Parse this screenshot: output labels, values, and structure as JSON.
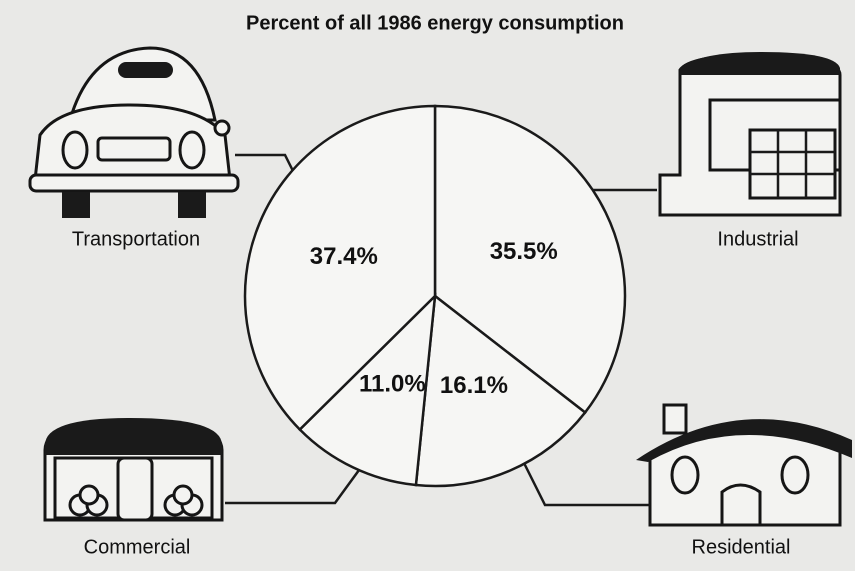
{
  "chart_data": {
    "type": "pie",
    "title": "Percent of all 1986 energy consumption",
    "categories": [
      "Industrial",
      "Residential",
      "Commercial",
      "Transportation"
    ],
    "values": [
      35.5,
      16.1,
      11.0,
      37.4
    ],
    "value_labels": [
      "35.5%",
      "16.1%",
      "11.0%",
      "37.4%"
    ]
  }
}
